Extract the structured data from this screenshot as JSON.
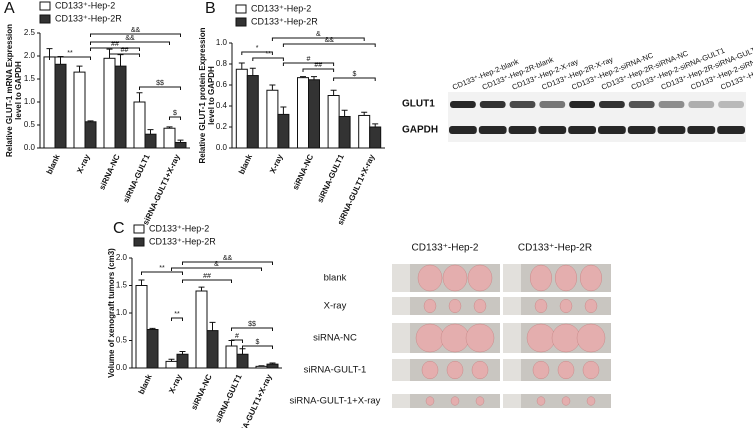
{
  "chart_data": [
    {
      "type": "bar",
      "panel": "A",
      "ylabel": [
        "Relative GLUT-1 mRNA Expression",
        "level to GAPDH"
      ],
      "categories": [
        "blank",
        "X-ray",
        "siRNA-NC",
        "siRNA-GULT1",
        "siRNA-GULT1+X-ray"
      ],
      "series": [
        {
          "name": "CD133⁺-Hep-2",
          "color": "#ffffff",
          "values": [
            1.98,
            1.65,
            1.95,
            1.0,
            0.43
          ],
          "errors": [
            0.18,
            0.13,
            0.2,
            0.2,
            0.03
          ]
        },
        {
          "name": "CD133⁺-Hep-2R",
          "color": "#333333",
          "values": [
            1.82,
            0.57,
            1.78,
            0.3,
            0.12
          ],
          "errors": [
            0.17,
            0.02,
            0.25,
            0.1,
            0.05
          ]
        }
      ],
      "ylim": [
        0,
        2.5
      ],
      "yticks": [
        {
          "value": 0,
          "label": "0.0"
        },
        0.5,
        {
          "value": 1,
          "label": "1.0"
        },
        1.5,
        {
          "value": 2,
          "label": "2.0"
        },
        2.5
      ],
      "annotations": [
        "**",
        "&&",
        "&&",
        "##",
        "##",
        "$$",
        "$"
      ]
    },
    {
      "type": "bar",
      "panel": "B",
      "ylabel": [
        "Relative GLUT-1 protein Expression",
        "level to GAPDH"
      ],
      "categories": [
        "blank",
        "X-ray",
        "siRNA-NC",
        "siRNA-GULT1",
        "siRNA-GULT1+X-ray"
      ],
      "series": [
        {
          "name": "CD133⁺-Hep-2",
          "color": "#ffffff",
          "values": [
            0.75,
            0.55,
            0.67,
            0.5,
            0.31
          ],
          "errors": [
            0.06,
            0.05,
            0.01,
            0.05,
            0.03
          ]
        },
        {
          "name": "CD133⁺-Hep-2R",
          "color": "#333333",
          "values": [
            0.69,
            0.32,
            0.65,
            0.3,
            0.2
          ],
          "errors": [
            0.07,
            0.07,
            0.03,
            0.06,
            0.03
          ]
        }
      ],
      "ylim": [
        0,
        1
      ],
      "yticks": [
        {
          "value": 0,
          "label": "0.0"
        },
        0.2,
        0.4,
        0.6,
        0.8,
        {
          "value": 1,
          "label": "1.0"
        }
      ],
      "annotations": [
        "*",
        "**",
        "&&",
        "&",
        "#",
        "##",
        "$"
      ]
    },
    {
      "type": "bar",
      "panel": "C",
      "ylabel": [
        "Volume of xenograft tumors (cm3)"
      ],
      "categories": [
        "blank",
        "X-ray",
        "siRNA-NC",
        "siRNA-GULT1",
        "siRNA-GULT1+X-ray"
      ],
      "series": [
        {
          "name": "CD133⁺-Hep-2",
          "color": "#ffffff",
          "values": [
            1.5,
            0.12,
            1.4,
            0.4,
            0.03
          ],
          "errors": [
            0.1,
            0.04,
            0.07,
            0.1,
            0.01
          ]
        },
        {
          "name": "CD133⁺-Hep-2R",
          "color": "#333333",
          "values": [
            0.7,
            0.25,
            0.68,
            0.25,
            0.07
          ],
          "errors": [
            0.02,
            0.05,
            0.15,
            0.1,
            0.02
          ]
        }
      ],
      "ylim": [
        0,
        2
      ],
      "yticks": [
        {
          "value": 0,
          "label": "0.0"
        },
        0.5,
        {
          "value": 1,
          "label": "1.0"
        },
        1.5,
        {
          "value": 2,
          "label": "2.0"
        }
      ],
      "annotations": [
        "**",
        "&&",
        "&",
        "##",
        "**",
        "#",
        "$$",
        "$"
      ]
    }
  ],
  "western_blot": {
    "lanes": [
      "CD133⁺-Hep-2-blank",
      "CD133⁺-Hep-2R-blank",
      "CD133⁺-Hep-2-X-ray",
      "CD133⁺-Hep-2R-X-ray",
      "CD133⁺-Hep-2-siRNA-NC",
      "CD133⁺-Hep-2R-siRNA-NC",
      "CD133⁺-Hep-2-siRNA-GULT1",
      "CD133⁺-Hep-2R-siRNA-GULT1",
      "CD133⁺-Hep-2-siRNA-GULT1+X-ray",
      "CD133⁺-Hep-2R-siRNA-GULT1+X-ray"
    ],
    "rows": [
      "GLUT1",
      "GAPDH"
    ]
  },
  "tumor_photos": {
    "columns": [
      "CD133⁺-Hep-2",
      "CD133⁺-Hep-2R"
    ],
    "rows": [
      "blank",
      "X-ray",
      "siRNA-NC",
      "siRNA-GULT-1",
      "siRNA-GULT-1+X-ray"
    ]
  }
}
